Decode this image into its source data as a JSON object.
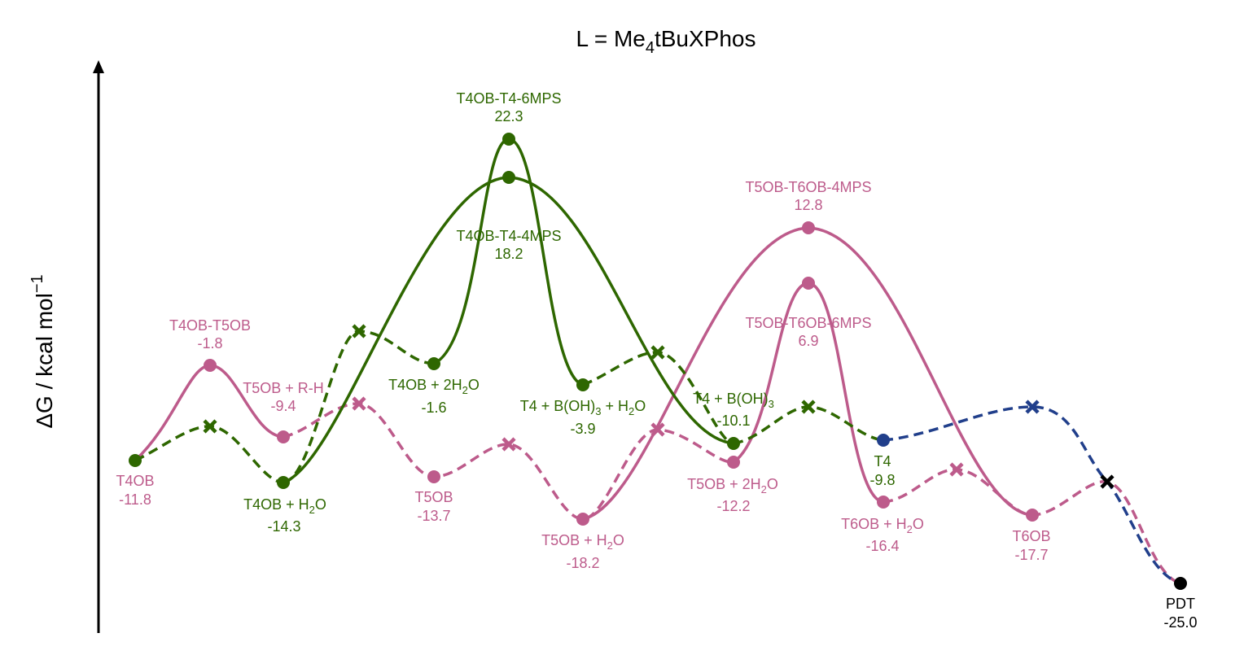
{
  "title": {
    "main": "L = Me",
    "sub": "4",
    "rest": "tBuXPhos"
  },
  "ylabel": {
    "main": "ΔG / kcal mol",
    "sup": "−1"
  },
  "colors": {
    "pink": "#bd5b8b",
    "green": "#2e6700",
    "blue": "#213f8b",
    "black": "#000000"
  },
  "states": [
    {
      "id": "T4OB",
      "name": "T4OB",
      "value": "-11.8",
      "color": "pink",
      "marker": "green-dot"
    },
    {
      "id": "T4OB-T5OB",
      "name": "T4OB-T5OB",
      "value": "-1.8",
      "color": "pink",
      "marker": "pink-dot"
    },
    {
      "id": "T5OB+R-H",
      "name": "T5OB + R-H",
      "value": "-9.4",
      "color": "pink",
      "marker": "pink-dot"
    },
    {
      "id": "T4OB+H2O",
      "name": "T4OB + H",
      "sub": "2",
      "tail": "O",
      "value": "-14.3",
      "color": "green",
      "marker": "green-dot"
    },
    {
      "id": "T5OB",
      "name": "T5OB",
      "value": "-13.7",
      "color": "pink",
      "marker": "pink-dot"
    },
    {
      "id": "T4OB+2H2O",
      "name": "T4OB + 2H",
      "sub": "2",
      "tail": "O",
      "value": "-1.6",
      "color": "green",
      "marker": "green-dot"
    },
    {
      "id": "T4OB-T4-6MPS",
      "name": "T4OB-T4-6MPS",
      "value": "22.3",
      "color": "green",
      "marker": "green-dot"
    },
    {
      "id": "T4OB-T4-4MPS",
      "name": "T4OB-T4-4MPS",
      "value": "18.2",
      "color": "green",
      "marker": "green-dot"
    },
    {
      "id": "T4+BOH3+H2O",
      "name": "T4 + B(OH)",
      "sub": "3",
      "tail": " + H",
      "sub2": "2",
      "tail2": "O",
      "value": "-3.9",
      "color": "green",
      "marker": "green-dot"
    },
    {
      "id": "T5OB+H2O",
      "name": "T5OB + H",
      "sub": "2",
      "tail": "O",
      "value": "-18.2",
      "color": "pink",
      "marker": "pink-dot"
    },
    {
      "id": "T4+BOH3",
      "name": "T4 + B(OH)",
      "sub": "3",
      "value": "-10.1",
      "color": "green",
      "marker": "green-dot"
    },
    {
      "id": "T5OB+2H2O",
      "name": "T5OB + 2H",
      "sub": "2",
      "tail": "O",
      "value": "-12.2",
      "color": "pink",
      "marker": "pink-dot"
    },
    {
      "id": "T5OB-T6OB-4MPS",
      "name": "T5OB-T6OB-4MPS",
      "value": "12.8",
      "color": "pink",
      "marker": "pink-dot"
    },
    {
      "id": "T5OB-T6OB-6MPS",
      "name": "T5OB-T6OB-6MPS",
      "value": "6.9",
      "color": "pink",
      "marker": "pink-dot"
    },
    {
      "id": "T4",
      "name": "T4",
      "value": "-9.8",
      "color": "green",
      "marker": "blue-dot"
    },
    {
      "id": "T6OB+H2O",
      "name": "T6OB + H",
      "sub": "2",
      "tail": "O",
      "value": "-16.4",
      "color": "pink",
      "marker": "pink-dot"
    },
    {
      "id": "T6OB",
      "name": "T6OB",
      "value": "-17.7",
      "color": "pink",
      "marker": "pink-dot"
    },
    {
      "id": "PDT",
      "name": "PDT",
      "value": "-25.0",
      "color": "black",
      "marker": "black-dot"
    }
  ]
}
